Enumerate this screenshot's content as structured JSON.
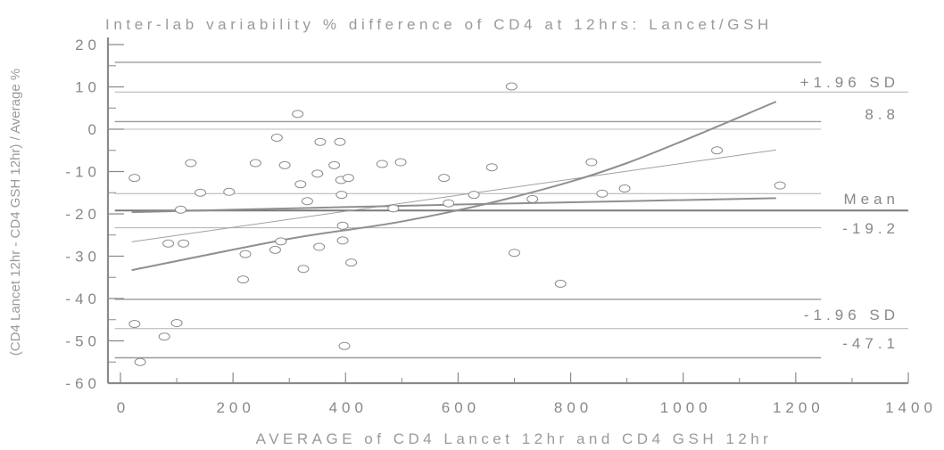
{
  "chart_data": {
    "type": "scatter",
    "title": "Inter-lab variability % difference of CD4 at 12hrs: Lancet/GSH",
    "xlabel": "AVERAGE of CD4 Lancet 12hr and CD4 GSH 12hr",
    "ylabel": "(CD4 Lancet 12hr - CD4 GSH 12hr) / Average %",
    "xlim": [
      0,
      1400
    ],
    "ylim": [
      -60,
      20
    ],
    "x_ticks": [
      "0",
      "200",
      "400",
      "600",
      "800",
      "1000",
      "1200",
      "1400"
    ],
    "y_ticks": [
      "20",
      "10",
      "0",
      "-10",
      "-20",
      "-30",
      "-40",
      "-50",
      "-60"
    ],
    "points": [
      {
        "x": 25,
        "y": -11.5
      },
      {
        "x": 25,
        "y": -46
      },
      {
        "x": 35,
        "y": -55
      },
      {
        "x": 78,
        "y": -49
      },
      {
        "x": 85,
        "y": -27
      },
      {
        "x": 100,
        "y": -45.8
      },
      {
        "x": 107,
        "y": -19
      },
      {
        "x": 112,
        "y": -27
      },
      {
        "x": 125,
        "y": -8
      },
      {
        "x": 142,
        "y": -15
      },
      {
        "x": 193,
        "y": -14.8
      },
      {
        "x": 218,
        "y": -35.5
      },
      {
        "x": 222,
        "y": -29.5
      },
      {
        "x": 240,
        "y": -8
      },
      {
        "x": 275,
        "y": -28.5
      },
      {
        "x": 278,
        "y": -2
      },
      {
        "x": 285,
        "y": -26.5
      },
      {
        "x": 292,
        "y": -8.5
      },
      {
        "x": 315,
        "y": 3.6
      },
      {
        "x": 320,
        "y": -13
      },
      {
        "x": 325,
        "y": -33
      },
      {
        "x": 332,
        "y": -17
      },
      {
        "x": 350,
        "y": -10.5
      },
      {
        "x": 353,
        "y": -27.8
      },
      {
        "x": 355,
        "y": -3
      },
      {
        "x": 380,
        "y": -8.5
      },
      {
        "x": 390,
        "y": -3
      },
      {
        "x": 392,
        "y": -12
      },
      {
        "x": 393,
        "y": -15.5
      },
      {
        "x": 395,
        "y": -22.8
      },
      {
        "x": 395,
        "y": -26.3
      },
      {
        "x": 398,
        "y": -51.2
      },
      {
        "x": 405,
        "y": -11.5
      },
      {
        "x": 410,
        "y": -31.5
      },
      {
        "x": 465,
        "y": -8.2
      },
      {
        "x": 485,
        "y": -18.7
      },
      {
        "x": 498,
        "y": -7.8
      },
      {
        "x": 575,
        "y": -11.5
      },
      {
        "x": 583,
        "y": -17.5
      },
      {
        "x": 628,
        "y": -15.5
      },
      {
        "x": 660,
        "y": -9
      },
      {
        "x": 695,
        "y": 10.1
      },
      {
        "x": 700,
        "y": -29.2
      },
      {
        "x": 732,
        "y": -16.5
      },
      {
        "x": 782,
        "y": -36.5
      },
      {
        "x": 837,
        "y": -7.8
      },
      {
        "x": 856,
        "y": -15.2
      },
      {
        "x": 896,
        "y": -14
      },
      {
        "x": 1060,
        "y": -5
      },
      {
        "x": 1172,
        "y": -13.3
      }
    ],
    "reference_lines": {
      "mean": -19.2,
      "upper_limit": 8.8,
      "lower_limit": -47.1,
      "mean_ci": [
        -23.3,
        -15.2
      ],
      "upper_ci": [
        1.8,
        15.8
      ],
      "lower_ci": [
        -54.0,
        -40.2
      ]
    },
    "regression": {
      "line": [
        [
          20,
          -26.6
        ],
        [
          1165,
          -4.9
        ]
      ],
      "upper_band": [
        [
          20,
          -19.6
        ],
        [
          300,
          -18.7
        ],
        [
          600,
          -17.8
        ],
        [
          900,
          -17.0
        ],
        [
          1165,
          -16.3
        ]
      ],
      "lower_band": [
        [
          20,
          -33.3
        ],
        [
          300,
          -25.9
        ],
        [
          500,
          -21.8
        ],
        [
          700,
          -16.0
        ],
        [
          900,
          -8.0
        ],
        [
          1165,
          6.5
        ]
      ]
    },
    "annotations": {
      "upper_label": "+1.96 SD",
      "upper_value": "8.8",
      "mean_label": "Mean",
      "mean_value": "-19.2",
      "lower_label": "-1.96 SD",
      "lower_value": "-47.1"
    },
    "grid": false,
    "legend": "none"
  }
}
